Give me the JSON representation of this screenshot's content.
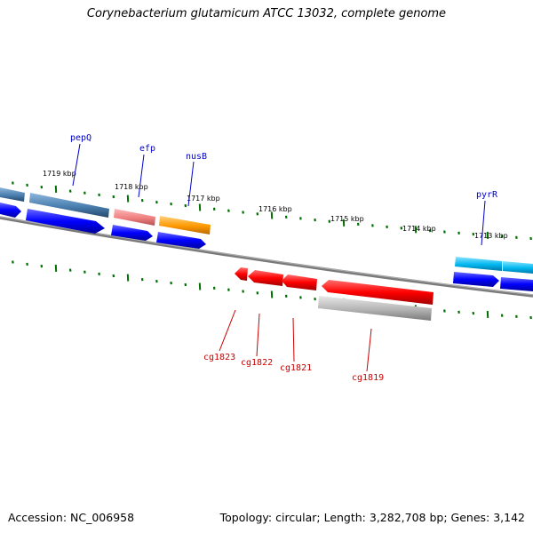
{
  "title": "Corynebacterium glutamicum ATCC 13032, complete genome",
  "footer": {
    "accession": "Accession: NC_006958",
    "summary": "Topology: circular; Length: 3,282,708 bp; Genes: 3,142"
  },
  "scale": {
    "labels": [
      "1719 kbp",
      "1718 kbp",
      "1717 kbp",
      "1716 kbp",
      "1715 kbp",
      "1714 kbp",
      "1713 kbp"
    ]
  },
  "genes_top": [
    "pepQ",
    "efp",
    "nusB",
    "pyrR"
  ],
  "genes_bottom": [
    "cg1823",
    "cg1822",
    "cg1821",
    "cg1819"
  ],
  "colors": {
    "backbone": "#808080",
    "tick": "#007000",
    "forward_cds": "#0000ff",
    "reverse_cds": "#ff0000",
    "feature_steelblue": "#4a7fb0",
    "feature_pink": "#f08080",
    "feature_orange": "#ff9900",
    "feature_cyan": "#00b8f0",
    "feature_gray": "#b4b4b4"
  }
}
